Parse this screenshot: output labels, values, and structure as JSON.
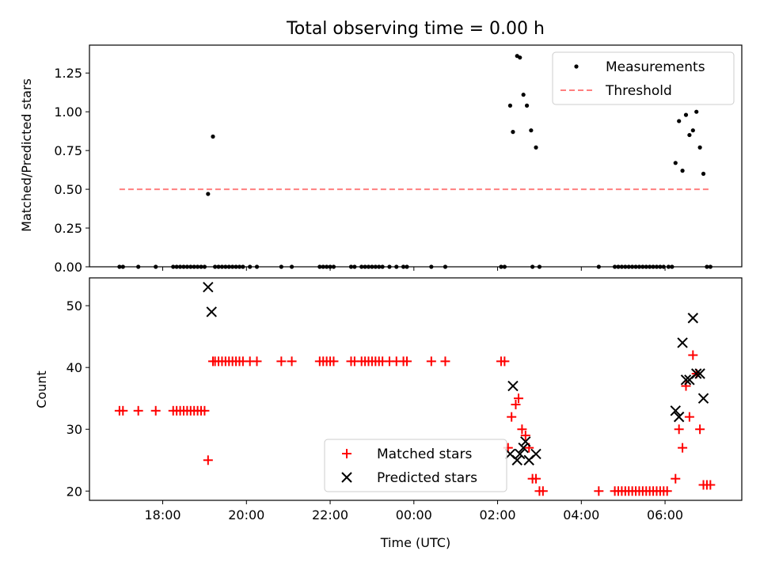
{
  "figure": {
    "title": "Total observing time = 0.00 h",
    "xlabel": "Time (UTC)"
  },
  "colors": {
    "measurements": "#000000",
    "threshold": "#ff7f7f",
    "matched": "#ff0000",
    "predicted": "#000000"
  },
  "chart_data": [
    {
      "type": "scatter",
      "title": "Total observing time = 0.00 h",
      "ylabel": "Matched/Predicted stars",
      "xlabel": "",
      "x_unit": "hours after 16:00 UTC (same day); values >8 fall after midnight",
      "xlim_time": [
        "16:15",
        "07:50"
      ],
      "ylim": [
        0,
        1.43
      ],
      "xticks": [
        "18:00",
        "20:00",
        "22:00",
        "00:00",
        "02:00",
        "04:00",
        "06:00"
      ],
      "yticks": [
        "0.00",
        "0.25",
        "0.50",
        "0.75",
        "1.00",
        "1.25"
      ],
      "legend_position": "top-right",
      "series": [
        {
          "name": "Measurements",
          "marker": "dot",
          "points": [
            [
              "16:58",
              0
            ],
            [
              "17:03",
              0
            ],
            [
              "17:25",
              0
            ],
            [
              "17:50",
              0
            ],
            [
              "18:15",
              0
            ],
            [
              "18:20",
              0
            ],
            [
              "18:25",
              0
            ],
            [
              "18:30",
              0
            ],
            [
              "18:35",
              0
            ],
            [
              "18:40",
              0
            ],
            [
              "18:45",
              0
            ],
            [
              "18:50",
              0
            ],
            [
              "18:55",
              0
            ],
            [
              "19:00",
              0
            ],
            [
              "19:05",
              0.47
            ],
            [
              "19:12",
              0.84
            ],
            [
              "19:15",
              0
            ],
            [
              "19:20",
              0
            ],
            [
              "19:25",
              0
            ],
            [
              "19:30",
              0
            ],
            [
              "19:35",
              0
            ],
            [
              "19:40",
              0
            ],
            [
              "19:45",
              0
            ],
            [
              "19:50",
              0
            ],
            [
              "19:55",
              0
            ],
            [
              "20:05",
              0
            ],
            [
              "20:15",
              0
            ],
            [
              "20:50",
              0
            ],
            [
              "21:05",
              0
            ],
            [
              "21:45",
              0
            ],
            [
              "21:50",
              0
            ],
            [
              "21:55",
              0
            ],
            [
              "22:00",
              0
            ],
            [
              "22:05",
              0
            ],
            [
              "22:30",
              0
            ],
            [
              "22:35",
              0
            ],
            [
              "22:45",
              0
            ],
            [
              "22:50",
              0
            ],
            [
              "22:55",
              0
            ],
            [
              "23:00",
              0
            ],
            [
              "23:05",
              0
            ],
            [
              "23:10",
              0
            ],
            [
              "23:15",
              0
            ],
            [
              "23:25",
              0
            ],
            [
              "23:35",
              0
            ],
            [
              "23:45",
              0
            ],
            [
              "23:50",
              0
            ],
            [
              "00:25",
              0
            ],
            [
              "00:45",
              0
            ],
            [
              "02:05",
              0
            ],
            [
              "02:10",
              0
            ],
            [
              "02:18",
              1.04
            ],
            [
              "02:22",
              0.87
            ],
            [
              "02:28",
              1.36
            ],
            [
              "02:32",
              1.35
            ],
            [
              "02:37",
              1.11
            ],
            [
              "02:42",
              1.04
            ],
            [
              "02:48",
              0.88
            ],
            [
              "02:55",
              0.77
            ],
            [
              "02:50",
              0
            ],
            [
              "03:00",
              0
            ],
            [
              "04:25",
              0
            ],
            [
              "04:48",
              0
            ],
            [
              "04:53",
              0
            ],
            [
              "04:58",
              0
            ],
            [
              "05:03",
              0
            ],
            [
              "05:08",
              0
            ],
            [
              "05:13",
              0
            ],
            [
              "05:18",
              0
            ],
            [
              "05:23",
              0
            ],
            [
              "05:28",
              0
            ],
            [
              "05:33",
              0
            ],
            [
              "05:38",
              0
            ],
            [
              "05:43",
              0
            ],
            [
              "05:48",
              0
            ],
            [
              "05:53",
              0
            ],
            [
              "05:58",
              0
            ],
            [
              "06:05",
              0
            ],
            [
              "06:10",
              0
            ],
            [
              "06:15",
              0.67
            ],
            [
              "06:20",
              0.94
            ],
            [
              "06:25",
              0.62
            ],
            [
              "06:30",
              0.98
            ],
            [
              "06:35",
              0.85
            ],
            [
              "06:40",
              0.88
            ],
            [
              "06:45",
              1.0
            ],
            [
              "06:50",
              0.77
            ],
            [
              "06:55",
              0.6
            ],
            [
              "07:00",
              0
            ],
            [
              "07:05",
              0
            ]
          ]
        },
        {
          "name": "Threshold",
          "marker": "dashed-line",
          "points": [
            [
              "16:58",
              0.5
            ],
            [
              "07:05",
              0.5
            ]
          ]
        }
      ]
    },
    {
      "type": "scatter",
      "ylabel": "Count",
      "xlabel": "Time (UTC)",
      "xlim_time": [
        "16:15",
        "07:50"
      ],
      "ylim": [
        18.5,
        54.5
      ],
      "xticks": [
        "18:00",
        "20:00",
        "22:00",
        "00:00",
        "02:00",
        "04:00",
        "06:00"
      ],
      "yticks": [
        "20",
        "30",
        "40",
        "50"
      ],
      "legend_position": "lower-center",
      "series": [
        {
          "name": "Matched stars",
          "marker": "plus",
          "points": [
            [
              "16:58",
              33
            ],
            [
              "17:03",
              33
            ],
            [
              "17:25",
              33
            ],
            [
              "17:50",
              33
            ],
            [
              "18:15",
              33
            ],
            [
              "18:20",
              33
            ],
            [
              "18:25",
              33
            ],
            [
              "18:30",
              33
            ],
            [
              "18:35",
              33
            ],
            [
              "18:40",
              33
            ],
            [
              "18:45",
              33
            ],
            [
              "18:50",
              33
            ],
            [
              "18:55",
              33
            ],
            [
              "19:00",
              33
            ],
            [
              "19:05",
              25
            ],
            [
              "19:12",
              41
            ],
            [
              "19:15",
              41
            ],
            [
              "19:20",
              41
            ],
            [
              "19:25",
              41
            ],
            [
              "19:30",
              41
            ],
            [
              "19:35",
              41
            ],
            [
              "19:40",
              41
            ],
            [
              "19:45",
              41
            ],
            [
              "19:50",
              41
            ],
            [
              "19:55",
              41
            ],
            [
              "20:05",
              41
            ],
            [
              "20:15",
              41
            ],
            [
              "20:50",
              41
            ],
            [
              "21:05",
              41
            ],
            [
              "21:45",
              41
            ],
            [
              "21:50",
              41
            ],
            [
              "21:55",
              41
            ],
            [
              "22:00",
              41
            ],
            [
              "22:05",
              41
            ],
            [
              "22:30",
              41
            ],
            [
              "22:35",
              41
            ],
            [
              "22:45",
              41
            ],
            [
              "22:50",
              41
            ],
            [
              "22:55",
              41
            ],
            [
              "23:00",
              41
            ],
            [
              "23:05",
              41
            ],
            [
              "23:10",
              41
            ],
            [
              "23:15",
              41
            ],
            [
              "23:25",
              41
            ],
            [
              "23:35",
              41
            ],
            [
              "23:45",
              41
            ],
            [
              "23:50",
              41
            ],
            [
              "00:25",
              41
            ],
            [
              "00:45",
              41
            ],
            [
              "02:05",
              41
            ],
            [
              "02:10",
              41
            ],
            [
              "02:15",
              27
            ],
            [
              "02:20",
              32
            ],
            [
              "02:26",
              34
            ],
            [
              "02:30",
              35
            ],
            [
              "02:35",
              30
            ],
            [
              "02:40",
              29
            ],
            [
              "02:45",
              27
            ],
            [
              "02:50",
              22
            ],
            [
              "02:55",
              22
            ],
            [
              "03:00",
              20
            ],
            [
              "03:05",
              20
            ],
            [
              "04:25",
              20
            ],
            [
              "04:48",
              20
            ],
            [
              "04:53",
              20
            ],
            [
              "04:58",
              20
            ],
            [
              "05:03",
              20
            ],
            [
              "05:08",
              20
            ],
            [
              "05:13",
              20
            ],
            [
              "05:18",
              20
            ],
            [
              "05:23",
              20
            ],
            [
              "05:28",
              20
            ],
            [
              "05:33",
              20
            ],
            [
              "05:38",
              20
            ],
            [
              "05:43",
              20
            ],
            [
              "05:48",
              20
            ],
            [
              "05:53",
              20
            ],
            [
              "05:58",
              20
            ],
            [
              "06:03",
              20
            ],
            [
              "06:15",
              22
            ],
            [
              "06:20",
              30
            ],
            [
              "06:25",
              27
            ],
            [
              "06:30",
              37
            ],
            [
              "06:35",
              32
            ],
            [
              "06:40",
              42
            ],
            [
              "06:45",
              39
            ],
            [
              "06:50",
              30
            ],
            [
              "06:55",
              21
            ],
            [
              "07:00",
              21
            ],
            [
              "07:05",
              21
            ]
          ]
        },
        {
          "name": "Predicted stars",
          "marker": "x",
          "points": [
            [
              "19:05",
              53
            ],
            [
              "19:10",
              49
            ],
            [
              "02:18",
              26
            ],
            [
              "02:22",
              37
            ],
            [
              "02:28",
              25
            ],
            [
              "02:32",
              26
            ],
            [
              "02:37",
              27
            ],
            [
              "02:40",
              28
            ],
            [
              "02:45",
              25
            ],
            [
              "02:55",
              26
            ],
            [
              "06:15",
              33
            ],
            [
              "06:20",
              32
            ],
            [
              "06:25",
              44
            ],
            [
              "06:30",
              38
            ],
            [
              "06:35",
              38
            ],
            [
              "06:40",
              48
            ],
            [
              "06:45",
              39
            ],
            [
              "06:50",
              39
            ],
            [
              "06:55",
              35
            ]
          ]
        }
      ]
    }
  ]
}
